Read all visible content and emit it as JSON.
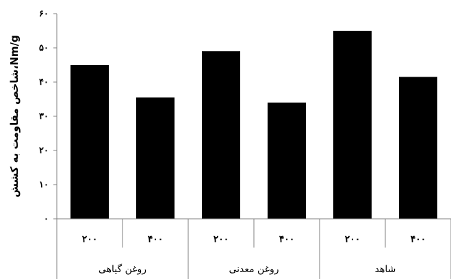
{
  "chart_data": {
    "type": "bar",
    "title": "",
    "xlabel": "",
    "ylabel": "شاخص مقاومت به کشش،Nm/g",
    "ylim": [
      0,
      60
    ],
    "yticks": [
      {
        "value": 0,
        "label": "۰"
      },
      {
        "value": 10,
        "label": "۱۰"
      },
      {
        "value": 20,
        "label": "۲۰"
      },
      {
        "value": 30,
        "label": "۳۰"
      },
      {
        "value": 40,
        "label": "۴۰"
      },
      {
        "value": 50,
        "label": "۵۰"
      },
      {
        "value": 60,
        "label": "۶۰"
      }
    ],
    "categories": [
      "۲۰۰",
      "۴۰۰",
      "۲۰۰",
      "۴۰۰",
      "۲۰۰",
      "۴۰۰"
    ],
    "values": [
      45,
      35.5,
      49,
      34,
      55,
      41.5
    ],
    "groups": [
      {
        "label": "روغن گیاهی",
        "size": 2
      },
      {
        "label": "روغن معدنی",
        "size": 2
      },
      {
        "label": "شاهد",
        "size": 2
      }
    ],
    "grid": false,
    "legend": "none",
    "bar_color": "#000000"
  }
}
